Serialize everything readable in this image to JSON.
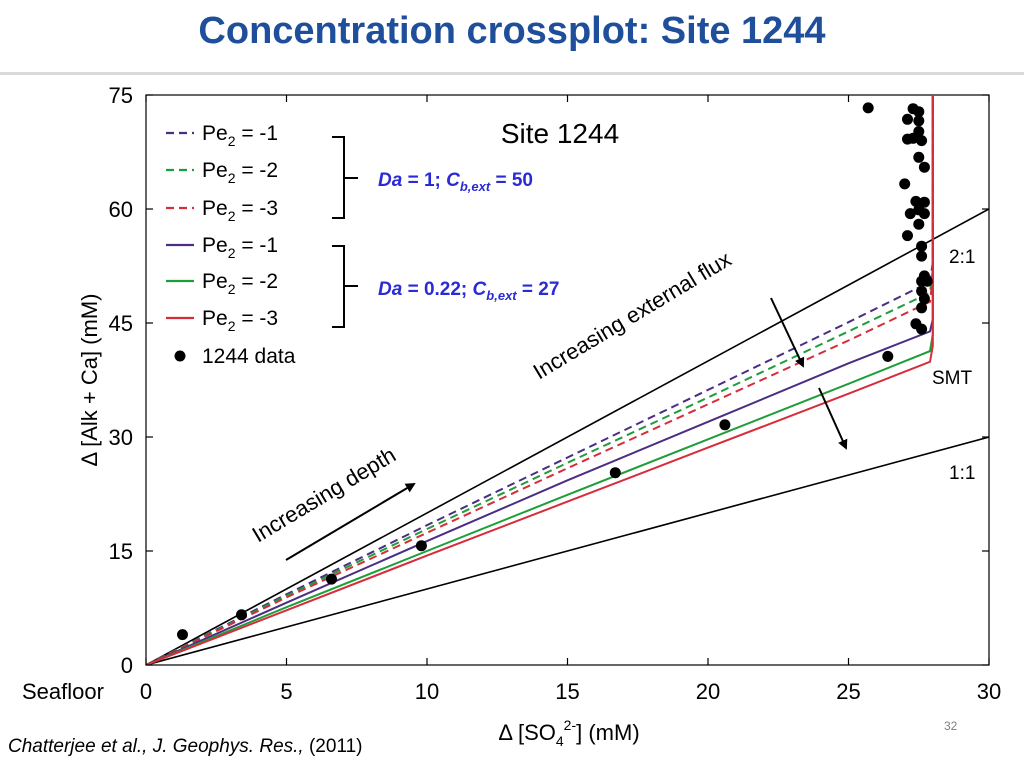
{
  "slide": {
    "title": "Concentration crossplot: Site 1244",
    "citation_italic": "Chatterjee et al., J. Geophys. Res.,",
    "citation_year": " (2011)",
    "page_number": "32"
  },
  "chart_data": {
    "type": "line",
    "title": "Site 1244",
    "xlabel_parts": {
      "prefix": "Δ [SO",
      "sub": "4",
      "sup": "2-",
      "suffix": "] (mM)"
    },
    "ylabel": "Δ [Alk + Ca] (mM)",
    "xlim": [
      0,
      30
    ],
    "ylim": [
      0,
      75
    ],
    "xticks": [
      0,
      5,
      10,
      15,
      20,
      25,
      30
    ],
    "yticks": [
      0,
      15,
      30,
      45,
      60,
      75
    ],
    "x_origin_label": "Seafloor",
    "reference_lines": [
      {
        "label": "2:1",
        "x": [
          0,
          30
        ],
        "y": [
          0,
          60
        ],
        "color": "#000000"
      },
      {
        "label": "1:1",
        "x": [
          0,
          30
        ],
        "y": [
          0,
          30
        ],
        "color": "#000000"
      }
    ],
    "series": [
      {
        "name": "Pe2 = -1",
        "group": "Da = 1; Cb,ext = 50",
        "dash": "dashed",
        "color": "#4b2e83",
        "x": [
          0,
          5,
          10,
          15,
          20,
          25,
          27.9,
          28.0,
          28.0
        ],
        "y": [
          0,
          9.3,
          18.4,
          27.3,
          36.2,
          45.1,
          50.4,
          53.0,
          75
        ]
      },
      {
        "name": "Pe2 = -2",
        "group": "Da = 1; Cb,ext = 50",
        "dash": "dashed",
        "color": "#1e9e3a",
        "x": [
          0,
          5,
          10,
          15,
          20,
          25,
          27.9,
          28.0,
          28.0
        ],
        "y": [
          0,
          9.1,
          17.9,
          26.6,
          35.2,
          43.9,
          49.0,
          52.0,
          75
        ]
      },
      {
        "name": "Pe2 = -3",
        "group": "Da = 1; Cb,ext = 50",
        "dash": "dashed",
        "color": "#d62d3a",
        "x": [
          0,
          5,
          10,
          15,
          20,
          25,
          27.9,
          28.0,
          28.0
        ],
        "y": [
          0,
          8.9,
          17.4,
          25.9,
          34.3,
          42.7,
          47.8,
          51.0,
          75
        ]
      },
      {
        "name": "Pe2 = -1",
        "group": "Da = 0.22; Cb,ext = 27",
        "dash": "solid",
        "color": "#4b2e83",
        "x": [
          0,
          5,
          10,
          15,
          20,
          25,
          27.9,
          28.0,
          28.0
        ],
        "y": [
          0,
          8.2,
          16.3,
          24.3,
          32.0,
          39.7,
          43.9,
          45.5,
          75
        ]
      },
      {
        "name": "Pe2 = -2",
        "group": "Da = 0.22; Cb,ext = 27",
        "dash": "solid",
        "color": "#1e9e3a",
        "x": [
          0,
          5,
          10,
          15,
          20,
          25,
          27.9,
          28.0,
          28.0
        ],
        "y": [
          0,
          7.6,
          15.0,
          22.4,
          29.7,
          37.0,
          41.3,
          43.5,
          75
        ]
      },
      {
        "name": "Pe2 = -3",
        "group": "Da = 0.22; Cb,ext = 27",
        "dash": "solid",
        "color": "#d62d3a",
        "x": [
          0,
          5,
          10,
          15,
          20,
          25,
          27.9,
          28.0,
          28.0
        ],
        "y": [
          0,
          7.2,
          14.4,
          21.5,
          28.6,
          35.7,
          39.9,
          42.0,
          75
        ]
      }
    ],
    "scatter": {
      "name": "1244 data",
      "points": [
        [
          1.3,
          4.0
        ],
        [
          3.4,
          6.6
        ],
        [
          6.6,
          11.3
        ],
        [
          9.8,
          15.7
        ],
        [
          16.7,
          25.3
        ],
        [
          20.6,
          31.6
        ],
        [
          26.4,
          40.6
        ],
        [
          25.7,
          73.3
        ],
        [
          27.3,
          73.2
        ],
        [
          27.5,
          72.8
        ],
        [
          27.1,
          71.8
        ],
        [
          27.5,
          71.6
        ],
        [
          27.5,
          70.2
        ],
        [
          27.3,
          69.3
        ],
        [
          27.1,
          69.2
        ],
        [
          27.6,
          69.0
        ],
        [
          27.5,
          66.8
        ],
        [
          27.7,
          65.5
        ],
        [
          27.0,
          63.3
        ],
        [
          27.4,
          61.0
        ],
        [
          27.7,
          60.9
        ],
        [
          27.5,
          59.9
        ],
        [
          27.2,
          59.4
        ],
        [
          27.7,
          59.4
        ],
        [
          27.5,
          58.0
        ],
        [
          27.1,
          56.5
        ],
        [
          27.6,
          55.1
        ],
        [
          27.6,
          53.8
        ],
        [
          27.7,
          51.2
        ],
        [
          27.6,
          50.5
        ],
        [
          27.8,
          50.5
        ],
        [
          27.6,
          49.2
        ],
        [
          27.7,
          48.2
        ],
        [
          27.6,
          47.0
        ],
        [
          27.4,
          44.9
        ],
        [
          27.6,
          44.2
        ]
      ],
      "color": "#000000"
    },
    "legend": {
      "placement": "top-left",
      "entries": [
        {
          "base": "Pe",
          "sub": "2",
          "rest": " = -1"
        },
        {
          "base": "Pe",
          "sub": "2",
          "rest": " = -2"
        },
        {
          "base": "Pe",
          "sub": "2",
          "rest": " = -3"
        },
        {
          "base": "Pe",
          "sub": "2",
          "rest": " = -1"
        },
        {
          "base": "Pe",
          "sub": "2",
          "rest": " = -2"
        },
        {
          "base": "Pe",
          "sub": "2",
          "rest": " = -3"
        },
        {
          "base": "1244 data",
          "sub": "",
          "rest": ""
        }
      ]
    },
    "group_labels": [
      {
        "da_italic": "Da",
        "da_rest": " = 1; ",
        "c_italic": "C",
        "c_sub": "b,ext",
        "c_rest": " = 50",
        "color": "#2a2ad6"
      },
      {
        "da_italic": "Da",
        "da_rest": " = 0.22; ",
        "c_italic": "C",
        "c_sub": "b,ext",
        "c_rest": " = 27",
        "color": "#2a2ad6"
      }
    ],
    "annotations": {
      "increasing_depth": "Increasing depth",
      "increasing_flux": "Increasing external flux",
      "smt": "SMT",
      "ratio_2_1": "2:1",
      "ratio_1_1": "1:1"
    }
  }
}
